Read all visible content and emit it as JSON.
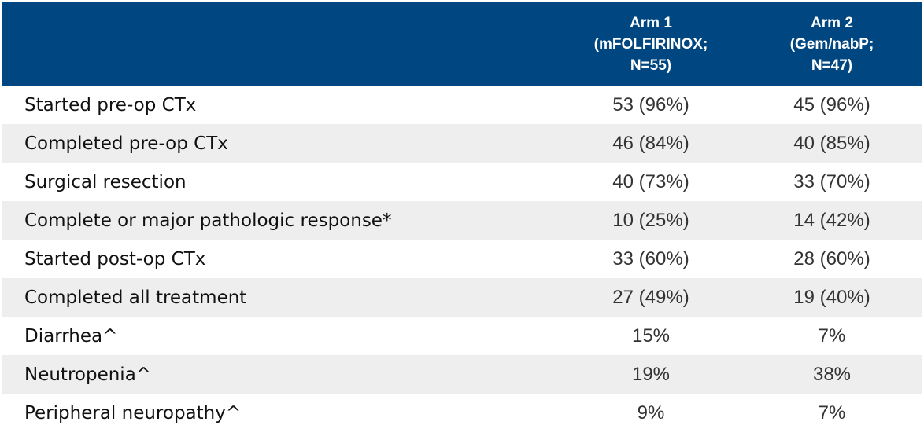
{
  "header": {
    "arm1": {
      "line1": "Arm 1",
      "line2": "(mFOLFIRINOX;",
      "line3": "N=55)"
    },
    "arm2": {
      "line1": "Arm 2",
      "line2": "(Gem/nabP;",
      "line3": "N=47)"
    }
  },
  "rows": [
    {
      "label": "Started pre-op CTx",
      "arm1": "53 (96%)",
      "arm2": "45 (96%)"
    },
    {
      "label": "Completed pre-op CTx",
      "arm1": "46 (84%)",
      "arm2": "40 (85%)"
    },
    {
      "label": "Surgical resection",
      "arm1": "40 (73%)",
      "arm2": "33 (70%)"
    },
    {
      "label": "Complete or major pathologic response*",
      "arm1": "10 (25%)",
      "arm2": "14 (42%)"
    },
    {
      "label": "Started post-op CTx",
      "arm1": "33 (60%)",
      "arm2": "28 (60%)"
    },
    {
      "label": "Completed all treatment",
      "arm1": "27 (49%)",
      "arm2": "19 (40%)"
    },
    {
      "label": "Diarrhea^",
      "arm1": "15%",
      "arm2": "7%"
    },
    {
      "label": "Neutropenia^",
      "arm1": "19%",
      "arm2": "38%"
    },
    {
      "label": "Peripheral neuropathy^",
      "arm1": "9%",
      "arm2": "7%"
    }
  ],
  "colors": {
    "header_bg": "#004680",
    "header_text": "#ffffff",
    "row_shade": "#eeeeee"
  }
}
